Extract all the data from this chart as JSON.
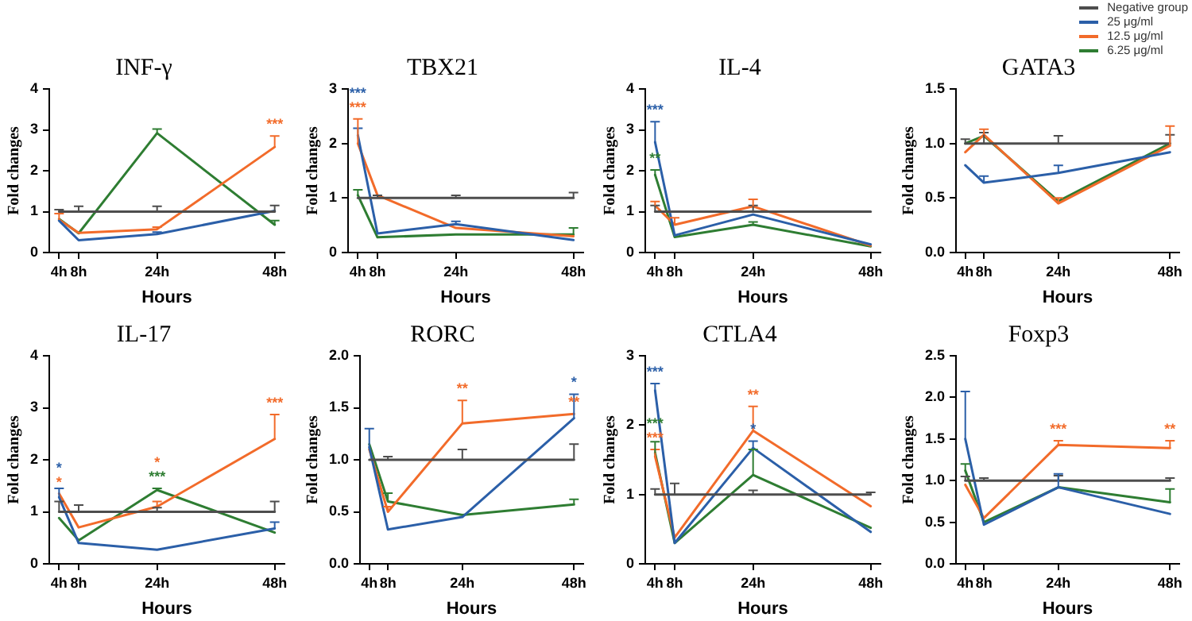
{
  "chart_data": [
    {
      "type": "line",
      "title": "INF-γ",
      "xlabel": "Hours",
      "ylabel": "Fold changes",
      "x": [
        4,
        8,
        24,
        48
      ],
      "xlim": [
        2,
        50
      ],
      "xticks": [
        {
          "value": 4,
          "label": "4h"
        },
        {
          "value": 8,
          "label": "8h"
        },
        {
          "value": 24,
          "label": "24h"
        },
        {
          "value": 48,
          "label": "48h"
        }
      ],
      "ylim": [
        0,
        4
      ],
      "yticks": [
        0,
        1,
        2,
        3,
        4
      ],
      "grid": false,
      "marker": "none",
      "series": [
        {
          "color": "#4d4d4d",
          "values": [
            1,
            1,
            1,
            1
          ],
          "errors": [
            [
              1,
              1.05
            ],
            [
              1,
              1.13
            ],
            [
              1,
              1.13
            ],
            [
              1,
              1.15
            ]
          ]
        },
        {
          "color": "#2b5fa8",
          "values": [
            0.78,
            0.3,
            0.45,
            1.02
          ],
          "errors": [
            null,
            null,
            [
              0.45,
              0.5
            ],
            null
          ]
        },
        {
          "color": "#f26b2a",
          "values": [
            0.8,
            0.48,
            0.57,
            2.58
          ],
          "errors": [
            [
              0.8,
              0.95
            ],
            null,
            [
              0.57,
              0.62
            ],
            [
              2.58,
              2.85
            ]
          ]
        },
        {
          "color": "#2e7d32",
          "values": [
            0.82,
            0.47,
            2.92,
            0.68
          ],
          "errors": [
            null,
            null,
            [
              2.92,
              3.02
            ],
            [
              0.68,
              0.78
            ]
          ]
        }
      ],
      "annotations": [
        {
          "text": "***",
          "x": 48,
          "y": 2.58
        }
      ]
    },
    {
      "type": "line",
      "title": "TBX21",
      "xlabel": "Hours",
      "ylabel": "Fold changes",
      "x": [
        4,
        8,
        24,
        48
      ],
      "xlim": [
        2,
        50
      ],
      "xticks": [
        {
          "value": 4,
          "label": "4h"
        },
        {
          "value": 8,
          "label": "8h"
        },
        {
          "value": 24,
          "label": "24h"
        },
        {
          "value": 48,
          "label": "48h"
        }
      ],
      "ylim": [
        0,
        3
      ],
      "yticks": [
        0,
        1,
        2,
        3
      ],
      "grid": false,
      "marker": "none",
      "series": [
        {
          "color": "#4d4d4d",
          "values": [
            1,
            1,
            1,
            1
          ],
          "errors": [
            null,
            [
              1,
              1.05
            ],
            [
              1,
              1.05
            ],
            [
              1,
              1.1
            ]
          ]
        },
        {
          "color": "#2b5fa8",
          "values": [
            2.15,
            0.35,
            0.52,
            0.23
          ],
          "errors": [
            [
              2.15,
              2.28
            ],
            null,
            [
              0.52,
              0.57
            ],
            null
          ]
        },
        {
          "color": "#f26b2a",
          "values": [
            2.0,
            1.05,
            0.45,
            0.3
          ],
          "errors": [
            [
              2.0,
              2.45
            ],
            null,
            null,
            null
          ]
        },
        {
          "color": "#2e7d32",
          "values": [
            1.05,
            0.28,
            0.33,
            0.33
          ],
          "errors": [
            [
              1.05,
              1.15
            ],
            null,
            null,
            [
              0.33,
              0.45
            ]
          ]
        }
      ],
      "annotations": [
        {
          "text": "***",
          "x": 4,
          "y": 2.0
        },
        {
          "text": "***",
          "x": 4,
          "y": 2.15
        }
      ]
    },
    {
      "type": "line",
      "title": "IL-4",
      "xlabel": "Hours",
      "ylabel": "Fold changes",
      "x": [
        4,
        8,
        24,
        48
      ],
      "xlim": [
        2,
        50
      ],
      "xticks": [
        {
          "value": 4,
          "label": "4h"
        },
        {
          "value": 8,
          "label": "8h"
        },
        {
          "value": 24,
          "label": "24h"
        },
        {
          "value": 48,
          "label": "48h"
        }
      ],
      "ylim": [
        0,
        4
      ],
      "yticks": [
        0,
        1,
        2,
        3,
        4
      ],
      "grid": false,
      "marker": "none",
      "series": [
        {
          "color": "#4d4d4d",
          "values": [
            1,
            1,
            1,
            1
          ],
          "errors": [
            [
              1,
              1.15
            ],
            null,
            [
              1,
              1.15
            ],
            null
          ]
        },
        {
          "color": "#2b5fa8",
          "values": [
            2.7,
            0.42,
            0.93,
            0.2
          ],
          "errors": [
            [
              2.7,
              3.2
            ],
            null,
            null,
            null
          ]
        },
        {
          "color": "#f26b2a",
          "values": [
            1.15,
            0.68,
            1.13,
            0.17
          ],
          "errors": [
            [
              1.15,
              1.25
            ],
            [
              0.68,
              0.85
            ],
            [
              1.13,
              1.3
            ],
            null
          ]
        },
        {
          "color": "#2e7d32",
          "values": [
            1.9,
            0.38,
            0.68,
            0.15
          ],
          "errors": [
            [
              1.9,
              2.02
            ],
            null,
            [
              0.68,
              0.75
            ],
            null
          ]
        }
      ],
      "annotations": [
        {
          "text": "***",
          "x": 4,
          "y": 2.7
        },
        {
          "text": "**",
          "x": 4,
          "y": 1.9
        }
      ]
    },
    {
      "type": "line",
      "title": "GATA3",
      "xlabel": "Hours",
      "ylabel": "Fold changes",
      "x": [
        4,
        8,
        24,
        48
      ],
      "xlim": [
        2,
        50
      ],
      "xticks": [
        {
          "value": 4,
          "label": "4h"
        },
        {
          "value": 8,
          "label": "8h"
        },
        {
          "value": 24,
          "label": "24h"
        },
        {
          "value": 48,
          "label": "48h"
        }
      ],
      "ylim": [
        0,
        1.5
      ],
      "yticks": [
        {
          "value": 0,
          "label": "0.0"
        },
        {
          "value": 0.5,
          "label": "0.5"
        },
        {
          "value": 1,
          "label": "1.0"
        },
        {
          "value": 1.5,
          "label": "1.5"
        }
      ],
      "grid": false,
      "marker": "none",
      "legend": "top right",
      "series": [
        {
          "name": "Negative group",
          "color": "#4d4d4d",
          "values": [
            1,
            1,
            1,
            1
          ],
          "errors": [
            [
              1,
              1.04
            ],
            [
              1,
              1.1
            ],
            [
              1,
              1.07
            ],
            [
              1,
              1.08
            ]
          ]
        },
        {
          "name": "25 μg/ml",
          "color": "#2b5fa8",
          "values": [
            0.8,
            0.64,
            0.73,
            0.92
          ],
          "errors": [
            null,
            [
              0.64,
              0.7
            ],
            [
              0.73,
              0.8
            ],
            null
          ]
        },
        {
          "name": "12.5 μg/ml",
          "color": "#f26b2a",
          "values": [
            0.92,
            1.08,
            0.45,
            0.98
          ],
          "errors": [
            null,
            [
              1.08,
              1.13
            ],
            [
              0.45,
              0.5
            ],
            [
              0.98,
              1.16
            ]
          ]
        },
        {
          "name": "6.25 μg/ml",
          "color": "#2e7d32",
          "values": [
            1.0,
            1.07,
            0.47,
            1.0
          ]
        }
      ]
    },
    {
      "type": "line",
      "title": "IL-17",
      "xlabel": "Hours",
      "ylabel": "Fold changes",
      "x": [
        4,
        8,
        24,
        48
      ],
      "xlim": [
        2,
        50
      ],
      "xticks": [
        {
          "value": 4,
          "label": "4h"
        },
        {
          "value": 8,
          "label": "8h"
        },
        {
          "value": 24,
          "label": "24h"
        },
        {
          "value": 48,
          "label": "48h"
        }
      ],
      "ylim": [
        0,
        4
      ],
      "yticks": [
        0,
        1,
        2,
        3,
        4
      ],
      "grid": false,
      "marker": "none",
      "series": [
        {
          "color": "#4d4d4d",
          "values": [
            1,
            1,
            1,
            1
          ],
          "errors": [
            [
              1,
              1.2
            ],
            [
              1,
              1.13
            ],
            [
              1,
              1.08
            ],
            [
              1,
              1.2
            ]
          ]
        },
        {
          "color": "#2b5fa8",
          "values": [
            1.28,
            0.4,
            0.27,
            0.68
          ],
          "errors": [
            [
              1.28,
              1.45
            ],
            null,
            null,
            [
              0.68,
              0.8
            ]
          ]
        },
        {
          "color": "#f26b2a",
          "values": [
            1.35,
            0.7,
            1.1,
            2.4
          ],
          "errors": [
            null,
            null,
            [
              1.1,
              1.2
            ],
            [
              2.4,
              2.87
            ]
          ]
        },
        {
          "color": "#2e7d32",
          "values": [
            0.88,
            0.45,
            1.42,
            0.6
          ],
          "errors": [
            null,
            null,
            [
              1.42,
              1.45
            ],
            null
          ]
        }
      ],
      "annotations": [
        {
          "text": "*",
          "x": 4,
          "y": 1.35
        },
        {
          "text": "*",
          "x": 4,
          "y": 1.28
        },
        {
          "text": "***",
          "x": 24,
          "y": 1.42
        },
        {
          "text": "*",
          "x": 24,
          "y": 1.1
        },
        {
          "text": "***",
          "x": 48,
          "y": 2.4
        }
      ]
    },
    {
      "type": "line",
      "title": "RORC",
      "xlabel": "Hours",
      "ylabel": "Fold changes",
      "x": [
        4,
        8,
        24,
        48
      ],
      "xlim": [
        2,
        50
      ],
      "xticks": [
        {
          "value": 4,
          "label": "4h"
        },
        {
          "value": 8,
          "label": "8h"
        },
        {
          "value": 24,
          "label": "24h"
        },
        {
          "value": 48,
          "label": "48h"
        }
      ],
      "ylim": [
        0,
        2
      ],
      "yticks": [
        {
          "value": 0,
          "label": "0.0"
        },
        {
          "value": 0.5,
          "label": "0.5"
        },
        {
          "value": 1,
          "label": "1.0"
        },
        {
          "value": 1.5,
          "label": "1.5"
        },
        {
          "value": 2,
          "label": "2.0"
        }
      ],
      "grid": false,
      "marker": "none",
      "series": [
        {
          "color": "#4d4d4d",
          "values": [
            1,
            1,
            1,
            1
          ],
          "errors": [
            null,
            [
              1,
              1.03
            ],
            [
              1,
              1.1
            ],
            [
              1,
              1.15
            ]
          ]
        },
        {
          "color": "#2b5fa8",
          "values": [
            1.12,
            0.33,
            0.45,
            1.4
          ],
          "errors": [
            [
              1.12,
              1.3
            ],
            null,
            null,
            [
              1.4,
              1.63
            ]
          ]
        },
        {
          "color": "#f26b2a",
          "values": [
            1.1,
            0.5,
            1.35,
            1.44
          ],
          "errors": [
            null,
            [
              0.5,
              0.55
            ],
            [
              1.35,
              1.57
            ],
            null
          ]
        },
        {
          "color": "#2e7d32",
          "values": [
            1.15,
            0.6,
            0.47,
            0.57
          ],
          "errors": [
            null,
            [
              0.6,
              0.68
            ],
            null,
            [
              0.57,
              0.62
            ]
          ]
        }
      ],
      "annotations": [
        {
          "text": "**",
          "x": 24,
          "y": 1.35
        },
        {
          "text": "**",
          "x": 48,
          "y": 1.44
        },
        {
          "text": "*",
          "x": 48,
          "y": 1.4
        }
      ]
    },
    {
      "type": "line",
      "title": "CTLA4",
      "xlabel": "Hours",
      "ylabel": "Fold changes",
      "x": [
        4,
        8,
        24,
        48
      ],
      "xlim": [
        2,
        50
      ],
      "xticks": [
        {
          "value": 4,
          "label": "4h"
        },
        {
          "value": 8,
          "label": "8h"
        },
        {
          "value": 24,
          "label": "24h"
        },
        {
          "value": 48,
          "label": "48h"
        }
      ],
      "ylim": [
        0,
        3
      ],
      "yticks": [
        0,
        1,
        2,
        3
      ],
      "grid": false,
      "marker": "none",
      "series": [
        {
          "color": "#4d4d4d",
          "values": [
            1,
            1,
            1,
            1
          ],
          "errors": [
            [
              1,
              1.08
            ],
            [
              1,
              1.16
            ],
            [
              1,
              1.06
            ],
            [
              1,
              1.03
            ]
          ]
        },
        {
          "color": "#2b5fa8",
          "values": [
            2.5,
            0.3,
            1.67,
            0.46
          ],
          "errors": [
            [
              2.5,
              2.6
            ],
            null,
            [
              1.67,
              1.77
            ],
            null
          ]
        },
        {
          "color": "#f26b2a",
          "values": [
            1.55,
            0.38,
            1.92,
            0.83
          ],
          "errors": [
            [
              1.55,
              1.65
            ],
            null,
            [
              1.92,
              2.27
            ],
            null
          ]
        },
        {
          "color": "#2e7d32",
          "values": [
            1.6,
            0.3,
            1.28,
            0.52
          ],
          "errors": [
            [
              1.6,
              1.76
            ],
            null,
            [
              1.28,
              1.65
            ],
            null
          ]
        }
      ],
      "annotations": [
        {
          "text": "***",
          "x": 4,
          "y": 2.5
        },
        {
          "text": "***",
          "x": 4,
          "y": 1.55
        },
        {
          "text": "***",
          "x": 4,
          "y": 1.6
        },
        {
          "text": "**",
          "x": 24,
          "y": 1.92
        },
        {
          "text": "*",
          "x": 24,
          "y": 1.67
        }
      ]
    },
    {
      "type": "line",
      "title": "Foxp3",
      "xlabel": "Hours",
      "ylabel": "Fold changes",
      "x": [
        4,
        8,
        24,
        48
      ],
      "xlim": [
        2,
        50
      ],
      "xticks": [
        {
          "value": 4,
          "label": "4h"
        },
        {
          "value": 8,
          "label": "8h"
        },
        {
          "value": 24,
          "label": "24h"
        },
        {
          "value": 48,
          "label": "48h"
        }
      ],
      "ylim": [
        0,
        2.5
      ],
      "yticks": [
        {
          "value": 0,
          "label": "0.0"
        },
        {
          "value": 0.5,
          "label": "0.5"
        },
        {
          "value": 1,
          "label": "1.0"
        },
        {
          "value": 1.5,
          "label": "1.5"
        },
        {
          "value": 2,
          "label": "2.0"
        },
        {
          "value": 2.5,
          "label": "2.5"
        }
      ],
      "grid": false,
      "marker": "none",
      "series": [
        {
          "color": "#4d4d4d",
          "values": [
            1,
            1,
            1,
            1
          ],
          "errors": [
            [
              1,
              1.05
            ],
            [
              1,
              1.03
            ],
            [
              1,
              1.06
            ],
            [
              1,
              1.03
            ]
          ]
        },
        {
          "color": "#2b5fa8",
          "values": [
            1.5,
            0.47,
            0.92,
            0.6
          ],
          "errors": [
            [
              1.5,
              2.07
            ],
            null,
            [
              0.92,
              1.08
            ],
            null
          ]
        },
        {
          "color": "#f26b2a",
          "values": [
            0.95,
            0.55,
            1.43,
            1.39
          ],
          "errors": [
            null,
            null,
            [
              1.43,
              1.48
            ],
            [
              1.39,
              1.48
            ]
          ]
        },
        {
          "color": "#2e7d32",
          "values": [
            1.12,
            0.5,
            0.92,
            0.74
          ],
          "errors": [
            [
              1.12,
              1.2
            ],
            null,
            null,
            [
              0.74,
              0.9
            ]
          ]
        }
      ],
      "annotations": [
        {
          "text": "***",
          "x": 24,
          "y": 1.43
        },
        {
          "text": "**",
          "x": 48,
          "y": 1.39
        }
      ]
    }
  ]
}
